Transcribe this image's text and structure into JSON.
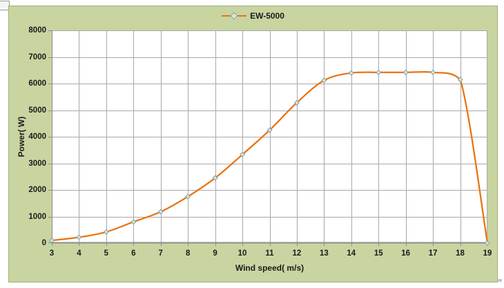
{
  "chart_data": {
    "type": "line",
    "title": "",
    "series": [
      {
        "name": "EW-5000",
        "x": [
          3,
          4,
          5,
          6,
          7,
          8,
          9,
          10,
          11,
          12,
          13,
          14,
          15,
          16,
          17,
          18,
          19
        ],
        "y": [
          100,
          220,
          420,
          800,
          1180,
          1750,
          2450,
          3330,
          4250,
          5280,
          6120,
          6400,
          6420,
          6420,
          6420,
          6150,
          0
        ]
      }
    ],
    "xlabel": "Wind speed( m/s)",
    "ylabel": "Power( W)",
    "xlim": [
      3,
      19
    ],
    "ylim": [
      0,
      8000
    ],
    "xticks": [
      3,
      4,
      5,
      6,
      7,
      8,
      9,
      10,
      11,
      12,
      13,
      14,
      15,
      16,
      17,
      18,
      19
    ],
    "yticks": [
      0,
      1000,
      2000,
      3000,
      4000,
      5000,
      6000,
      7000,
      8000
    ],
    "grid": true,
    "legend_position": "top-center",
    "marker": "diamond",
    "colors": {
      "chart_background": "#c8d5a1",
      "plot_background": "#ffffff",
      "gridline": "#a8a8a8",
      "axis_line": "#8a8a8a",
      "series_line": "#e8730e",
      "marker_fill": "#dde8c4",
      "marker_stroke": "#7f9db9",
      "text": "#1a1a1a"
    }
  }
}
